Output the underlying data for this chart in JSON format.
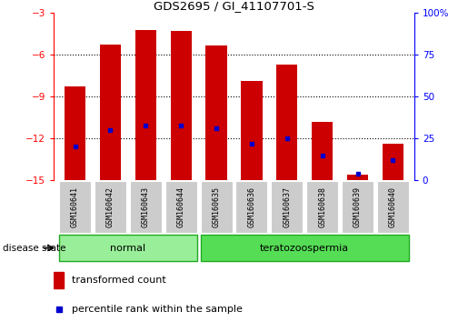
{
  "title": "GDS2695 / GI_41107701-S",
  "samples": [
    "GSM160641",
    "GSM160642",
    "GSM160643",
    "GSM160644",
    "GSM160635",
    "GSM160636",
    "GSM160637",
    "GSM160638",
    "GSM160639",
    "GSM160640"
  ],
  "red_tops": [
    -8.3,
    -5.3,
    -4.2,
    -4.3,
    -5.35,
    -7.9,
    -6.7,
    -10.8,
    -14.6,
    -12.4
  ],
  "red_bottoms": [
    -15,
    -15,
    -15,
    -15,
    -15,
    -15,
    -15,
    -15,
    -15,
    -15
  ],
  "blue_values": [
    -12.6,
    -11.4,
    -11.1,
    -11.05,
    -11.25,
    -12.35,
    -12.0,
    -13.25,
    -14.55,
    -13.55
  ],
  "groups": [
    "normal",
    "normal",
    "normal",
    "normal",
    "teratozoospermia",
    "teratozoospermia",
    "teratozoospermia",
    "teratozoospermia",
    "teratozoospermia",
    "teratozoospermia"
  ],
  "ylim_left": [
    -15,
    -3
  ],
  "ylim_right": [
    0,
    100
  ],
  "yticks_left": [
    -15,
    -12,
    -9,
    -6,
    -3
  ],
  "yticks_right": [
    0,
    25,
    50,
    75,
    100
  ],
  "grid_lines": [
    -6,
    -9,
    -12
  ],
  "bar_color": "#cc0000",
  "blue_color": "#0000cc",
  "normal_bg": "#99ee99",
  "tera_bg": "#55dd55",
  "label_bg": "#cccccc",
  "normal_label": "normal",
  "tera_label": "teratozoospermia",
  "disease_state_label": "disease state",
  "legend_red": "transformed count",
  "legend_blue": "percentile rank within the sample",
  "left_axis_color": "red",
  "right_axis_color": "blue"
}
